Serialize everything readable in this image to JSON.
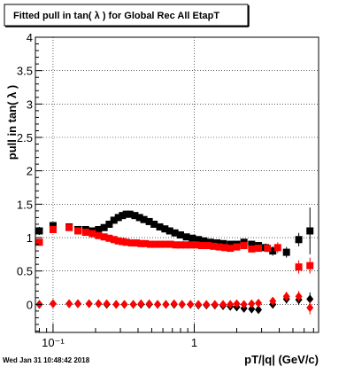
{
  "canvas": {
    "background": "#ffffff",
    "frame_color": "#000000",
    "grid_color": "#000000"
  },
  "chart_data": {
    "type": "scatter",
    "title": "Fitted pull in tan( λ ) for Global Rec All EtapT",
    "xlabel": "pT/|q| (GeV/c)",
    "ylabel": "pull in tan( λ )",
    "x_scale": "log",
    "xlim": [
      0.075,
      7.6
    ],
    "ylim": [
      -0.42,
      4.0
    ],
    "grid": true,
    "x_major_ticks": [
      0.1,
      1
    ],
    "x_tick_labels": [
      "10⁻¹",
      "1"
    ],
    "y_ticks": [
      0,
      0.5,
      1,
      1.5,
      2,
      2.5,
      3,
      3.5,
      4
    ],
    "y_tick_labels": [
      "0",
      "0.5",
      "1",
      "1.5",
      "2",
      "2.5",
      "3",
      "3.5",
      "4"
    ],
    "timestamp": "Wed Jan 31 10:48:42 2018",
    "series": [
      {
        "color": "#000000",
        "marker": "square",
        "points": [
          [
            0.08,
            1.1
          ],
          [
            0.1,
            1.18
          ],
          [
            0.13,
            1.16
          ],
          [
            0.15,
            1.12
          ],
          [
            0.17,
            1.12
          ],
          [
            0.19,
            1.1
          ],
          [
            0.21,
            1.12
          ],
          [
            0.23,
            1.15
          ],
          [
            0.25,
            1.2
          ],
          [
            0.27,
            1.26
          ],
          [
            0.29,
            1.3
          ],
          [
            0.31,
            1.33
          ],
          [
            0.33,
            1.35
          ],
          [
            0.35,
            1.35
          ],
          [
            0.38,
            1.33
          ],
          [
            0.41,
            1.3
          ],
          [
            0.44,
            1.27
          ],
          [
            0.48,
            1.24
          ],
          [
            0.52,
            1.2
          ],
          [
            0.57,
            1.16
          ],
          [
            0.62,
            1.13
          ],
          [
            0.67,
            1.1
          ],
          [
            0.73,
            1.07
          ],
          [
            0.8,
            1.04
          ],
          [
            0.88,
            1.01
          ],
          [
            0.97,
            0.99
          ],
          [
            1.07,
            0.97
          ],
          [
            1.17,
            0.95
          ],
          [
            1.3,
            0.93
          ],
          [
            1.45,
            0.92
          ],
          [
            1.6,
            0.91
          ],
          [
            1.8,
            0.9
          ],
          [
            2.0,
            0.9
          ],
          [
            2.25,
            0.93
          ],
          [
            2.55,
            0.9
          ],
          [
            2.85,
            0.88
          ],
          [
            3.2,
            0.85
          ],
          [
            3.6,
            0.8
          ],
          [
            4.5,
            0.78
          ],
          [
            5.5,
            0.97
          ],
          [
            6.6,
            1.1
          ]
        ],
        "errors": [
          0.06,
          0.05,
          0.04,
          0.04,
          0.03,
          0.03,
          0.03,
          0.03,
          0.03,
          0.03,
          0.03,
          0.03,
          0.03,
          0.03,
          0.03,
          0.03,
          0.03,
          0.03,
          0.03,
          0.03,
          0.03,
          0.03,
          0.03,
          0.03,
          0.03,
          0.03,
          0.03,
          0.03,
          0.03,
          0.03,
          0.03,
          0.04,
          0.04,
          0.04,
          0.05,
          0.05,
          0.06,
          0.07,
          0.08,
          0.1,
          0.35
        ]
      },
      {
        "color": "#ff0000",
        "marker": "square",
        "points": [
          [
            0.08,
            0.93
          ],
          [
            0.1,
            1.12
          ],
          [
            0.13,
            1.15
          ],
          [
            0.15,
            1.1
          ],
          [
            0.17,
            1.08
          ],
          [
            0.19,
            1.06
          ],
          [
            0.21,
            1.03
          ],
          [
            0.23,
            1.01
          ],
          [
            0.25,
            0.99
          ],
          [
            0.27,
            0.97
          ],
          [
            0.29,
            0.95
          ],
          [
            0.31,
            0.94
          ],
          [
            0.33,
            0.93
          ],
          [
            0.36,
            0.92
          ],
          [
            0.39,
            0.92
          ],
          [
            0.42,
            0.91
          ],
          [
            0.45,
            0.91
          ],
          [
            0.49,
            0.9
          ],
          [
            0.53,
            0.9
          ],
          [
            0.58,
            0.9
          ],
          [
            0.63,
            0.9
          ],
          [
            0.68,
            0.9
          ],
          [
            0.74,
            0.89
          ],
          [
            0.8,
            0.89
          ],
          [
            0.87,
            0.89
          ],
          [
            0.95,
            0.89
          ],
          [
            1.03,
            0.89
          ],
          [
            1.13,
            0.88
          ],
          [
            1.25,
            0.88
          ],
          [
            1.37,
            0.87
          ],
          [
            1.5,
            0.86
          ],
          [
            1.65,
            0.85
          ],
          [
            1.8,
            0.84
          ],
          [
            2.0,
            0.86
          ],
          [
            2.25,
            0.88
          ],
          [
            2.55,
            0.83
          ],
          [
            2.85,
            0.84
          ],
          [
            3.3,
            0.84
          ],
          [
            3.9,
            0.85
          ],
          [
            5.5,
            0.56
          ],
          [
            6.6,
            0.58
          ]
        ],
        "errors": [
          0.05,
          0.05,
          0.04,
          0.04,
          0.03,
          0.03,
          0.03,
          0.03,
          0.03,
          0.03,
          0.03,
          0.03,
          0.03,
          0.03,
          0.03,
          0.03,
          0.03,
          0.03,
          0.03,
          0.03,
          0.03,
          0.03,
          0.03,
          0.03,
          0.03,
          0.03,
          0.03,
          0.03,
          0.03,
          0.03,
          0.03,
          0.04,
          0.04,
          0.04,
          0.04,
          0.05,
          0.05,
          0.06,
          0.08,
          0.1,
          0.12
        ]
      },
      {
        "color": "#000000",
        "marker": "diamond",
        "points": [
          [
            0.08,
            0.0
          ],
          [
            0.1,
            0.01
          ],
          [
            0.13,
            0.01
          ],
          [
            0.15,
            0.01
          ],
          [
            0.18,
            0.01
          ],
          [
            0.21,
            0.01
          ],
          [
            0.24,
            0.0
          ],
          [
            0.28,
            0.0
          ],
          [
            0.32,
            0.0
          ],
          [
            0.37,
            0.0
          ],
          [
            0.42,
            0.0
          ],
          [
            0.48,
            0.0
          ],
          [
            0.55,
            0.0
          ],
          [
            0.63,
            0.0
          ],
          [
            0.72,
            0.0
          ],
          [
            0.82,
            0.0
          ],
          [
            0.94,
            0.0
          ],
          [
            1.07,
            -0.01
          ],
          [
            1.22,
            -0.01
          ],
          [
            1.4,
            -0.01
          ],
          [
            1.6,
            -0.02
          ],
          [
            1.8,
            -0.03
          ],
          [
            2.0,
            -0.04
          ],
          [
            2.25,
            -0.06
          ],
          [
            2.55,
            -0.07
          ],
          [
            2.85,
            -0.08
          ],
          [
            3.6,
            0.0
          ],
          [
            4.5,
            0.08
          ],
          [
            5.5,
            0.07
          ],
          [
            6.6,
            0.08
          ]
        ],
        "errors": [
          0.03,
          0.03,
          0.02,
          0.02,
          0.02,
          0.02,
          0.02,
          0.02,
          0.02,
          0.02,
          0.02,
          0.02,
          0.02,
          0.02,
          0.02,
          0.02,
          0.02,
          0.02,
          0.02,
          0.02,
          0.03,
          0.03,
          0.03,
          0.04,
          0.04,
          0.05,
          0.06,
          0.07,
          0.08,
          0.1
        ]
      },
      {
        "color": "#ff0000",
        "marker": "diamond",
        "points": [
          [
            0.08,
            0.0
          ],
          [
            0.1,
            0.01
          ],
          [
            0.13,
            0.01
          ],
          [
            0.15,
            0.01
          ],
          [
            0.18,
            0.01
          ],
          [
            0.21,
            0.01
          ],
          [
            0.24,
            0.01
          ],
          [
            0.28,
            0.0
          ],
          [
            0.32,
            0.0
          ],
          [
            0.37,
            0.0
          ],
          [
            0.42,
            0.01
          ],
          [
            0.48,
            0.01
          ],
          [
            0.55,
            0.0
          ],
          [
            0.63,
            0.0
          ],
          [
            0.72,
            0.01
          ],
          [
            0.82,
            0.0
          ],
          [
            0.94,
            0.0
          ],
          [
            1.07,
            0.0
          ],
          [
            1.22,
            0.0
          ],
          [
            1.4,
            0.0
          ],
          [
            1.6,
            0.0
          ],
          [
            1.8,
            0.0
          ],
          [
            2.0,
            0.01
          ],
          [
            2.25,
            0.0
          ],
          [
            2.55,
            0.01
          ],
          [
            2.85,
            0.02
          ],
          [
            3.6,
            0.05
          ],
          [
            4.5,
            0.12
          ],
          [
            5.5,
            0.12
          ],
          [
            6.6,
            -0.05
          ]
        ],
        "errors": [
          0.03,
          0.03,
          0.02,
          0.02,
          0.02,
          0.02,
          0.02,
          0.02,
          0.02,
          0.02,
          0.02,
          0.02,
          0.02,
          0.02,
          0.02,
          0.02,
          0.02,
          0.02,
          0.02,
          0.02,
          0.03,
          0.03,
          0.03,
          0.04,
          0.04,
          0.05,
          0.06,
          0.07,
          0.08,
          0.1
        ]
      }
    ]
  }
}
